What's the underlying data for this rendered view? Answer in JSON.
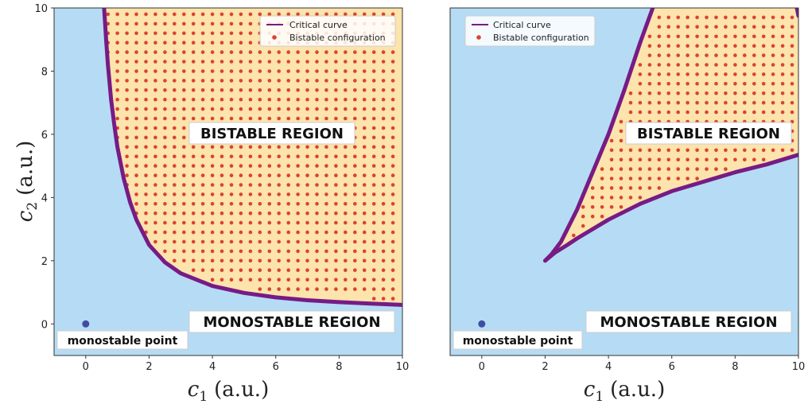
{
  "chart_data": [
    {
      "type": "region",
      "xlabel": "c",
      "xlabel_sub": "1",
      "xlabel_unit": "(a.u.)",
      "ylabel": "c",
      "ylabel_sub": "2",
      "ylabel_unit": "(a.u.)",
      "xlim": [
        -1,
        10
      ],
      "ylim": [
        -1,
        10
      ],
      "xticks": [
        0,
        2,
        4,
        6,
        8,
        10
      ],
      "yticks": [
        0,
        2,
        4,
        6,
        8,
        10
      ],
      "legend_position": "top-right",
      "legend": [
        "Critical curve",
        "Bistable configuration"
      ],
      "region_labels": {
        "bistable": "BISTABLE REGION",
        "monostable": "MONOSTABLE REGION"
      },
      "point_label": "monostable point",
      "monostable_point": [
        0,
        0
      ],
      "critical_curve": {
        "x": [
          0.58,
          0.65,
          0.7,
          0.8,
          0.9,
          1.0,
          1.2,
          1.4,
          1.6,
          2.0,
          2.5,
          3.0,
          4.0,
          5.0,
          6.0,
          7.0,
          8.0,
          9.0,
          10.0
        ],
        "y": [
          10,
          8.9,
          8.2,
          7.1,
          6.3,
          5.6,
          4.6,
          3.85,
          3.3,
          2.5,
          1.95,
          1.6,
          1.2,
          0.98,
          0.84,
          0.75,
          0.69,
          0.64,
          0.6
        ]
      },
      "bistable_grid": {
        "spacing": 0.3,
        "xmin": 0.7,
        "xmax": 9.8,
        "ymin": 0.8,
        "ymax": 9.8
      }
    },
    {
      "type": "region",
      "xlabel": "c",
      "xlabel_sub": "1",
      "xlabel_unit": "(a.u.)",
      "xlim": [
        -1,
        10
      ],
      "ylim": [
        -1,
        10
      ],
      "xticks": [
        0,
        2,
        4,
        6,
        8,
        10
      ],
      "legend_position": "top-left",
      "legend": [
        "Critical curve",
        "Bistable configuration"
      ],
      "region_labels": {
        "bistable": "BISTABLE REGION",
        "monostable": "MONOSTABLE REGION"
      },
      "point_label": "monostable point",
      "monostable_point": [
        0,
        0
      ],
      "critical_curve_upper": {
        "x": [
          2.0,
          2.2,
          2.5,
          3.0,
          3.5,
          4.0,
          4.5,
          5.0,
          5.4
        ],
        "y": [
          2.0,
          2.2,
          2.6,
          3.6,
          4.8,
          6.0,
          7.4,
          8.9,
          10.0
        ]
      },
      "critical_curve_lower": {
        "x": [
          2.0,
          2.3,
          2.7,
          3.0,
          4.0,
          5.0,
          6.0,
          7.0,
          8.0,
          9.0,
          10.0
        ],
        "y": [
          2.0,
          2.25,
          2.5,
          2.7,
          3.3,
          3.8,
          4.2,
          4.5,
          4.8,
          5.05,
          5.35
        ]
      },
      "right_edge_curve": {
        "x": [
          9.95,
          10.0
        ],
        "y": [
          10.0,
          9.75
        ]
      },
      "bistable_grid": {
        "spacing": 0.3,
        "xmin": 2.3,
        "xmax": 9.8,
        "ymin": 2.2,
        "ymax": 9.8
      }
    }
  ],
  "colors": {
    "monostable_fill": "#b5dcf4",
    "bistable_fill": "#fde3ac",
    "dots": "#d9442f",
    "curve": "#771b85",
    "point": "#3f4ea1"
  }
}
